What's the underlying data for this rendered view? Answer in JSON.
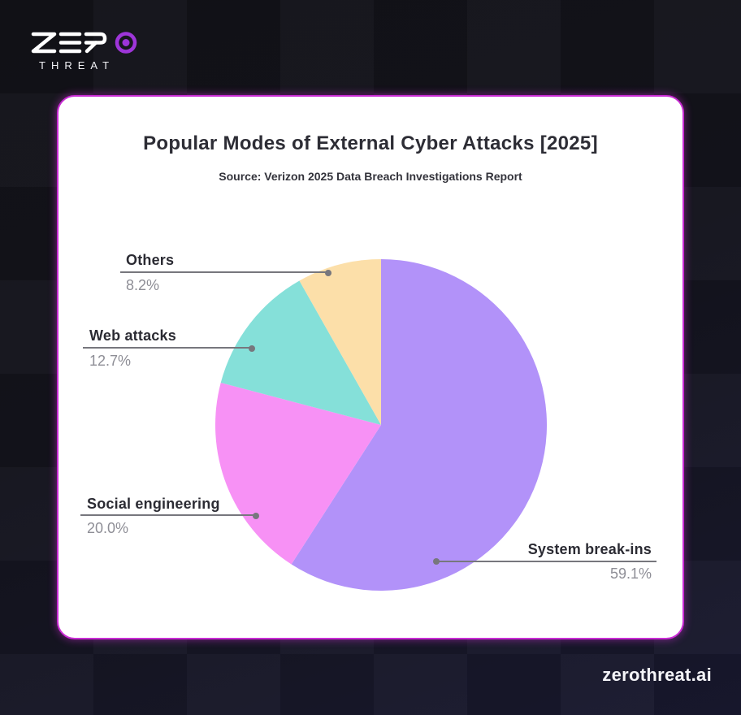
{
  "logo": {
    "wordmark": "ZERO",
    "subtext": "THREAT"
  },
  "card": {
    "title": "Popular Modes of External Cyber Attacks [2025]",
    "subtitle": "Source: Verizon 2025 Data Breach Investigations Report"
  },
  "chart_data": {
    "type": "pie",
    "title": "Popular Modes of External Cyber Attacks [2025]",
    "source": "Source: Verizon 2025 Data Breach Investigations Report",
    "start_angle_deg": -90,
    "direction": "clockwise",
    "legend_position": "callout-labels",
    "segments": [
      {
        "label": "System break-ins",
        "value": 59.1,
        "pct": "59.1%",
        "color": "#b292f9"
      },
      {
        "label": "Social engineering",
        "value": 20.0,
        "pct": "20.0%",
        "color": "#f791f5"
      },
      {
        "label": "Web attacks",
        "value": 12.7,
        "pct": "12.7%",
        "color": "#85e0d9"
      },
      {
        "label": "Others",
        "value": 8.2,
        "pct": "8.2%",
        "color": "#fcdfa9"
      }
    ]
  },
  "footer": {
    "site": "zerothreat.ai"
  },
  "colors": {
    "card_border": "#c92bd4",
    "logo_ring": "#9e35d9",
    "leader_line": "#77777d",
    "label_text": "#2b2b33",
    "pct_text": "#8e8e96",
    "title_text": "#2d2d35",
    "bg_bottom": "#1a1a31"
  }
}
